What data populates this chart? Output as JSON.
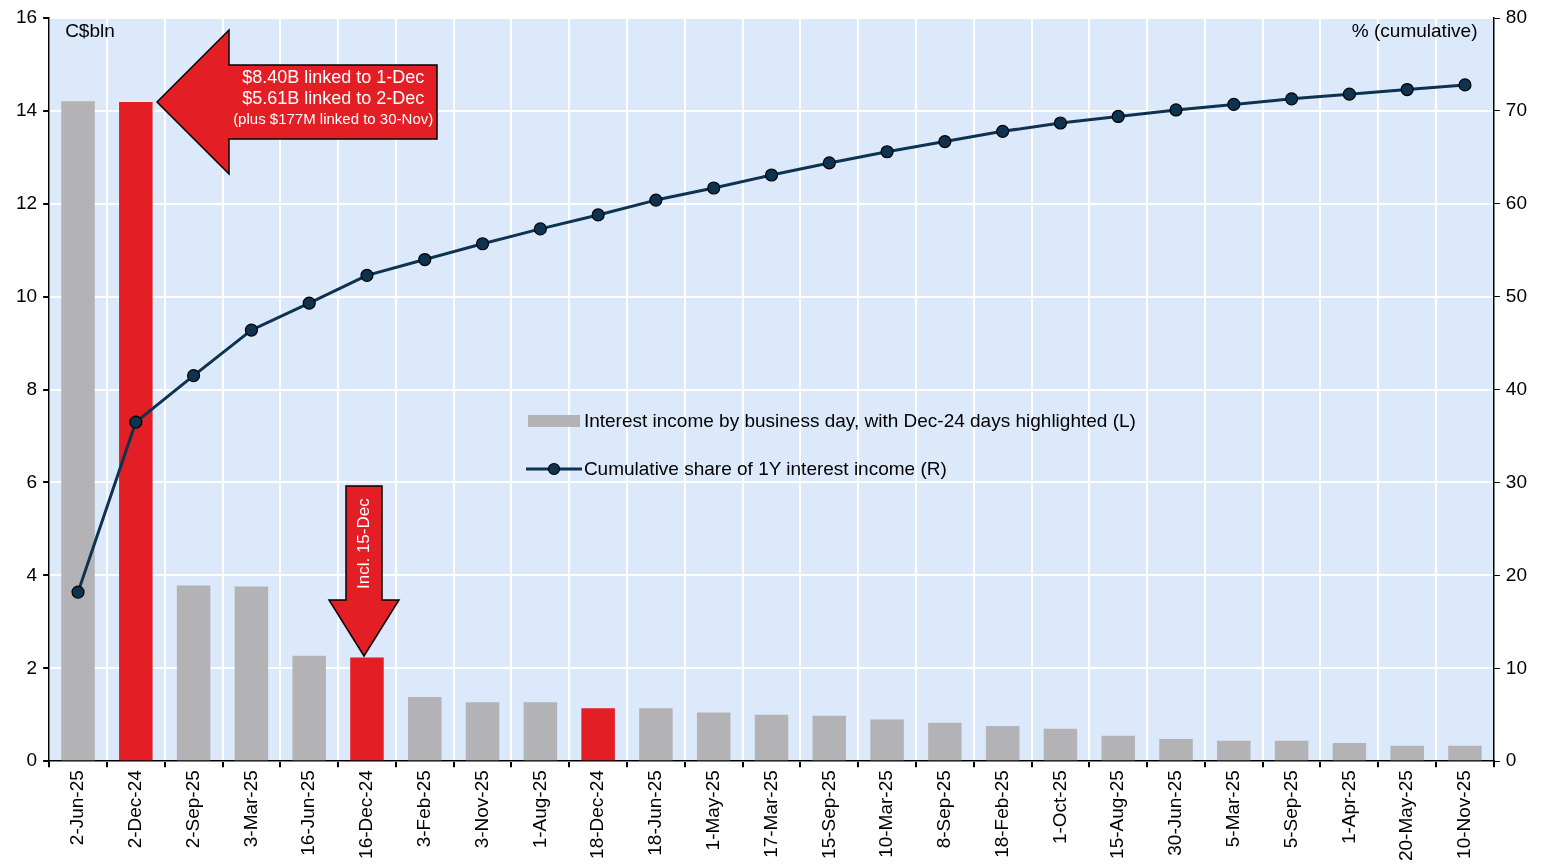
{
  "chart_data": {
    "type": "bar",
    "ylabel": "C$bln",
    "y2label": "% (cumulative)",
    "categories": [
      "2-Jun-25",
      "2-Dec-24",
      "2-Sep-25",
      "3-Mar-25",
      "16-Jun-25",
      "16-Dec-24",
      "3-Feb-25",
      "3-Nov-25",
      "1-Aug-25",
      "18-Dec-24",
      "18-Jun-25",
      "1-May-25",
      "17-Mar-25",
      "15-Sep-25",
      "10-Mar-25",
      "8-Sep-25",
      "18-Feb-25",
      "1-Oct-25",
      "15-Aug-25",
      "30-Jun-25",
      "5-Mar-25",
      "5-Sep-25",
      "1-Apr-25",
      "20-May-25",
      "10-Nov-25"
    ],
    "series": [
      {
        "name": "Interest income by business day, with Dec-24 days highlighted (L)",
        "color": "#b3b3b5",
        "colors": [
          "#b3b3b5",
          "#e31e24",
          "#b3b3b5",
          "#b3b3b5",
          "#b3b3b5",
          "#e31e24",
          "#b3b3b5",
          "#b3b3b5",
          "#b3b3b5",
          "#e31e24",
          "#b3b3b5",
          "#b3b3b5",
          "#b3b3b5",
          "#b3b3b5",
          "#b3b3b5",
          "#b3b3b5",
          "#b3b3b5",
          "#b3b3b5",
          "#b3b3b5",
          "#b3b3b5",
          "#b3b3b5",
          "#b3b3b5",
          "#b3b3b5",
          "#b3b3b5",
          "#b3b3b5"
        ],
        "values": [
          14.21,
          14.19,
          3.78,
          3.76,
          2.27,
          2.23,
          1.38,
          1.27,
          1.27,
          1.14,
          1.14,
          1.05,
          1.0,
          0.98,
          0.9,
          0.83,
          0.76,
          0.7,
          0.55,
          0.48,
          0.44,
          0.44,
          0.39,
          0.33,
          0.33
        ]
      },
      {
        "type": "line",
        "name": "Cumulative share of 1Y interest income (R)",
        "color": "#0d3350",
        "axis": "y2",
        "marker": "circle",
        "line_style": "solid",
        "values": [
          18.2,
          36.5,
          41.5,
          46.4,
          49.3,
          52.3,
          54.0,
          55.7,
          57.3,
          58.8,
          60.4,
          61.7,
          63.1,
          64.4,
          65.6,
          66.7,
          67.8,
          68.7,
          69.4,
          70.1,
          70.7,
          71.3,
          71.8,
          72.3,
          72.8
        ]
      }
    ],
    "ylim": [
      0,
      16
    ],
    "yticks": [
      0,
      2,
      4,
      6,
      8,
      10,
      12,
      14,
      16
    ],
    "y2lim": [
      0,
      80
    ],
    "y2ticks": [
      0,
      10,
      20,
      30,
      40,
      50,
      60,
      70,
      80
    ],
    "grid": true,
    "legend": "center",
    "annotations": [
      "$8.40B linked to 1-Dec\n$5.61B linked to 2-Dec\n(plus $177M linked to 30-Nov)",
      "Incl. 15-Dec"
    ]
  }
}
